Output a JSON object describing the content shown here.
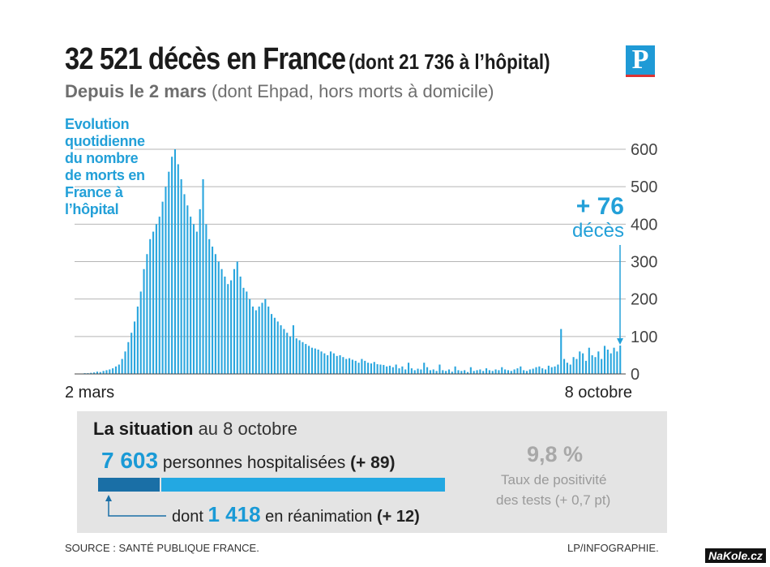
{
  "header": {
    "title_main": "32 521 décès  en France",
    "title_paren": "(dont 21 736 à l’hôpital)",
    "subtitle_bold": "Depuis le 2 mars",
    "subtitle_rest": " (dont Ehpad, hors morts à domicile)",
    "logo_letter": "P"
  },
  "chart": {
    "caption": "Evolution quotidienne du nombre de morts en France à l’hôpital",
    "annotation_value": "+ 76",
    "annotation_unit": "décès",
    "x_start_label": "2 mars",
    "x_end_label": "8 octobre",
    "y_ticks": [
      "600",
      "500",
      "400",
      "300",
      "200",
      "100",
      "0"
    ]
  },
  "chart_data": {
    "type": "bar",
    "x_start": "2 mars",
    "x_end": "8 octobre",
    "ylim": [
      0,
      600
    ],
    "values": [
      0,
      0,
      1,
      2,
      2,
      3,
      4,
      6,
      5,
      8,
      10,
      12,
      15,
      20,
      25,
      40,
      60,
      85,
      110,
      140,
      180,
      220,
      280,
      320,
      360,
      380,
      400,
      420,
      460,
      500,
      540,
      580,
      600,
      560,
      520,
      480,
      450,
      420,
      400,
      380,
      440,
      520,
      400,
      360,
      340,
      320,
      300,
      280,
      260,
      240,
      250,
      280,
      300,
      260,
      230,
      220,
      200,
      180,
      170,
      180,
      190,
      200,
      180,
      160,
      150,
      140,
      130,
      120,
      110,
      100,
      130,
      95,
      90,
      85,
      80,
      75,
      70,
      68,
      65,
      60,
      55,
      50,
      60,
      55,
      48,
      50,
      45,
      40,
      42,
      38,
      35,
      30,
      40,
      35,
      30,
      28,
      32,
      26,
      25,
      24,
      20,
      22,
      18,
      25,
      15,
      20,
      12,
      30,
      15,
      10,
      14,
      12,
      30,
      18,
      10,
      12,
      8,
      25,
      10,
      8,
      12,
      6,
      20,
      10,
      8,
      10,
      5,
      18,
      8,
      10,
      12,
      8,
      15,
      10,
      8,
      12,
      10,
      18,
      12,
      10,
      8,
      12,
      15,
      20,
      10,
      8,
      12,
      14,
      18,
      20,
      15,
      12,
      22,
      18,
      20,
      25,
      120,
      40,
      30,
      25,
      45,
      40,
      60,
      55,
      35,
      70,
      50,
      45,
      60,
      40,
      75,
      65,
      55,
      70,
      60,
      76
    ],
    "title": "",
    "xlabel": "",
    "ylabel": ""
  },
  "situation": {
    "title_bold": "La situation",
    "title_rest": " au 8 octobre",
    "hospitalised_number": "7 603",
    "hospitalised_text": " personnes hospitalisées ",
    "hospitalised_delta": "(+ 89)",
    "icu_prefix": "dont ",
    "icu_number": "1 418",
    "icu_text": " en réanimation ",
    "icu_delta": "(+ 12)",
    "positivity_value": "9,8 %",
    "positivity_line1": "Taux de positivité",
    "positivity_line2": "des tests (+ 0,7 pt)"
  },
  "footer": {
    "source": "SOURCE : SANTÉ PUBLIQUE FRANCE.",
    "credit": "LP/INFOGRAPHIE.",
    "watermark": "NaKole.cz"
  },
  "colors": {
    "accent": "#23a0d8",
    "bar": "#2aa6de",
    "dark_bar": "#1a6fa6",
    "panel": "#e4e4e4"
  }
}
